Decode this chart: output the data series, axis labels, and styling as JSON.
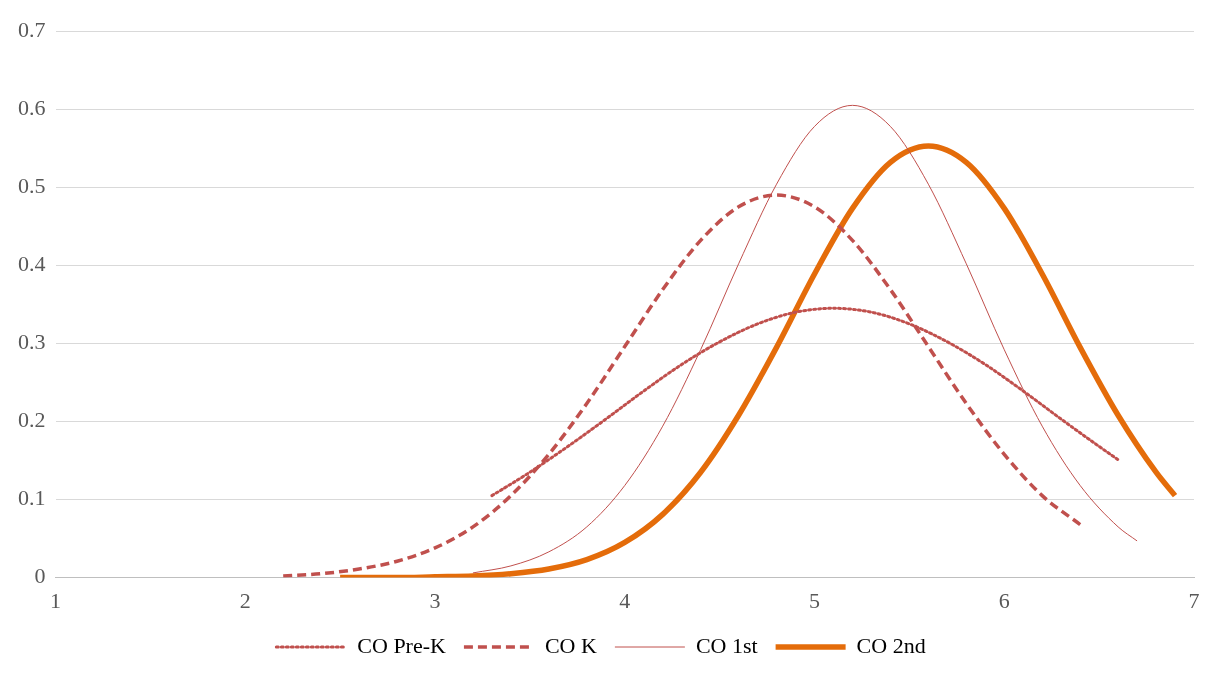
{
  "chart_data": {
    "type": "line",
    "xlim": [
      1,
      7
    ],
    "xticks": [
      1,
      2,
      3,
      4,
      5,
      6,
      7
    ],
    "ylim": [
      0,
      0.7
    ],
    "yticks": [
      0,
      0.1,
      0.2,
      0.3,
      0.4,
      0.5,
      0.6,
      0.7
    ],
    "grid": "y",
    "legend": "bottom",
    "marker": "none",
    "series": [
      {
        "name": "CO Pre-K",
        "color": "#c0504d",
        "line_style": "dotted",
        "x": [
          3.3,
          3.5,
          3.7,
          3.9,
          4.1,
          4.3,
          4.5,
          4.7,
          4.9,
          5.1,
          5.3,
          5.5,
          5.7,
          5.9,
          6.1,
          6.3,
          6.5,
          6.6
        ],
        "values": [
          0.105,
          0.135,
          0.168,
          0.203,
          0.239,
          0.273,
          0.302,
          0.325,
          0.34,
          0.345,
          0.34,
          0.325,
          0.302,
          0.273,
          0.239,
          0.203,
          0.168,
          0.151
        ]
      },
      {
        "name": "CO K",
        "color": "#c0504d",
        "line_style": "dashed",
        "x": [
          2.2,
          2.4,
          2.6,
          2.8,
          3.0,
          3.2,
          3.4,
          3.6,
          3.8,
          4.0,
          4.2,
          4.4,
          4.6,
          4.8,
          5.0,
          5.2,
          5.4,
          5.6,
          5.8,
          6.0,
          6.2,
          6.4
        ],
        "values": [
          0.002,
          0.005,
          0.011,
          0.021,
          0.038,
          0.065,
          0.105,
          0.158,
          0.223,
          0.296,
          0.369,
          0.432,
          0.475,
          0.49,
          0.475,
          0.432,
          0.369,
          0.296,
          0.223,
          0.158,
          0.105,
          0.068
        ]
      },
      {
        "name": "CO 1st",
        "color": "#c0504d",
        "line_style": "solid",
        "x": [
          3.2,
          3.4,
          3.6,
          3.8,
          4.0,
          4.2,
          4.4,
          4.6,
          4.8,
          5.0,
          5.2,
          5.4,
          5.6,
          5.8,
          6.0,
          6.2,
          6.4,
          6.6,
          6.7
        ],
        "values": [
          0.006,
          0.015,
          0.033,
          0.065,
          0.118,
          0.194,
          0.292,
          0.402,
          0.504,
          0.578,
          0.605,
          0.578,
          0.504,
          0.402,
          0.292,
          0.194,
          0.118,
          0.065,
          0.047
        ]
      },
      {
        "name": "CO 2nd",
        "color": "#e46c0a",
        "line_style": "solid",
        "x": [
          2.5,
          2.8,
          3.0,
          3.2,
          3.4,
          3.6,
          3.8,
          4.0,
          4.2,
          4.4,
          4.6,
          4.8,
          5.0,
          5.2,
          5.4,
          5.6,
          5.8,
          6.0,
          6.2,
          6.4,
          6.6,
          6.8,
          6.9
        ],
        "values": [
          0,
          0,
          0.001,
          0.002,
          0.005,
          0.011,
          0.023,
          0.045,
          0.081,
          0.135,
          0.208,
          0.295,
          0.389,
          0.473,
          0.532,
          0.553,
          0.532,
          0.473,
          0.389,
          0.295,
          0.208,
          0.135,
          0.105
        ]
      }
    ]
  }
}
